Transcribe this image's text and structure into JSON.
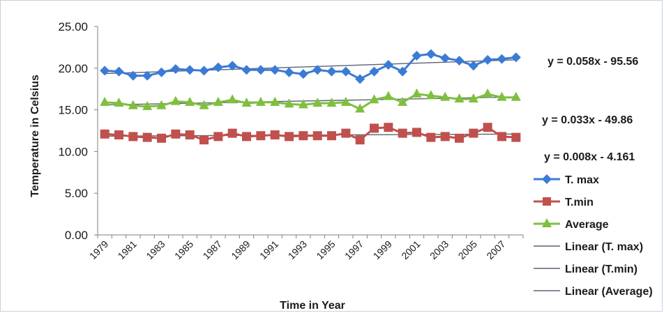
{
  "chart_data": {
    "type": "line",
    "title": "",
    "xlabel": "Time in Year",
    "ylabel": "Temperature in Celsius",
    "ylim": [
      0,
      25
    ],
    "yticks": [
      "0.00",
      "5.00",
      "10.00",
      "15.00",
      "20.00",
      "25.00"
    ],
    "x": [
      1979,
      1980,
      1981,
      1982,
      1983,
      1984,
      1985,
      1986,
      1987,
      1988,
      1989,
      1990,
      1991,
      1992,
      1993,
      1994,
      1995,
      1996,
      1997,
      1998,
      1999,
      2000,
      2001,
      2002,
      2003,
      2004,
      2005,
      2006,
      2007,
      2008
    ],
    "xtick_labels": [
      "1979",
      "1981",
      "1983",
      "1985",
      "1987",
      "1989",
      "1991",
      "1993",
      "1995",
      "1997",
      "1999",
      "2001",
      "2003",
      "2005",
      "2007"
    ],
    "grid": false,
    "legend_position": "right",
    "series": [
      {
        "name": "T. max",
        "color": "#3a7bd5",
        "marker": "diamond",
        "values": [
          19.7,
          19.6,
          19.1,
          19.1,
          19.5,
          19.9,
          19.8,
          19.7,
          20.1,
          20.3,
          19.8,
          19.8,
          19.8,
          19.5,
          19.3,
          19.8,
          19.6,
          19.6,
          18.7,
          19.6,
          20.4,
          19.6,
          21.5,
          21.7,
          21.2,
          20.9,
          20.3,
          21.0,
          21.1,
          21.3
        ]
      },
      {
        "name": "T.min",
        "color": "#c0504d",
        "marker": "square",
        "values": [
          12.1,
          12.0,
          11.8,
          11.7,
          11.6,
          12.1,
          12.0,
          11.4,
          11.8,
          12.2,
          11.8,
          11.9,
          12.0,
          11.8,
          11.9,
          11.9,
          11.9,
          12.2,
          11.4,
          12.8,
          12.9,
          12.2,
          12.3,
          11.7,
          11.8,
          11.6,
          12.2,
          12.9,
          11.8,
          11.7
        ]
      },
      {
        "name": "Average",
        "color": "#7fbf3f",
        "marker": "triangle",
        "values": [
          15.9,
          15.8,
          15.5,
          15.4,
          15.5,
          16.0,
          15.9,
          15.5,
          15.9,
          16.2,
          15.8,
          15.9,
          15.9,
          15.7,
          15.6,
          15.8,
          15.8,
          15.9,
          15.1,
          16.2,
          16.6,
          15.9,
          16.9,
          16.7,
          16.5,
          16.3,
          16.3,
          16.9,
          16.5,
          16.5
        ]
      }
    ],
    "trendlines": [
      {
        "name": "Linear (T. max)",
        "color": "#5a6272",
        "start": 19.35,
        "end": 21.0,
        "equation": "y = 0.058x - 95.56"
      },
      {
        "name": "Linear (T.min)",
        "color": "#5a6272",
        "start": 11.85,
        "end": 12.1,
        "equation": "y = 0.008x - 4.161"
      },
      {
        "name": "Linear (Average)",
        "color": "#5a6272",
        "start": 15.6,
        "end": 16.55,
        "equation": "y = 0.033x - 49.86"
      }
    ]
  }
}
